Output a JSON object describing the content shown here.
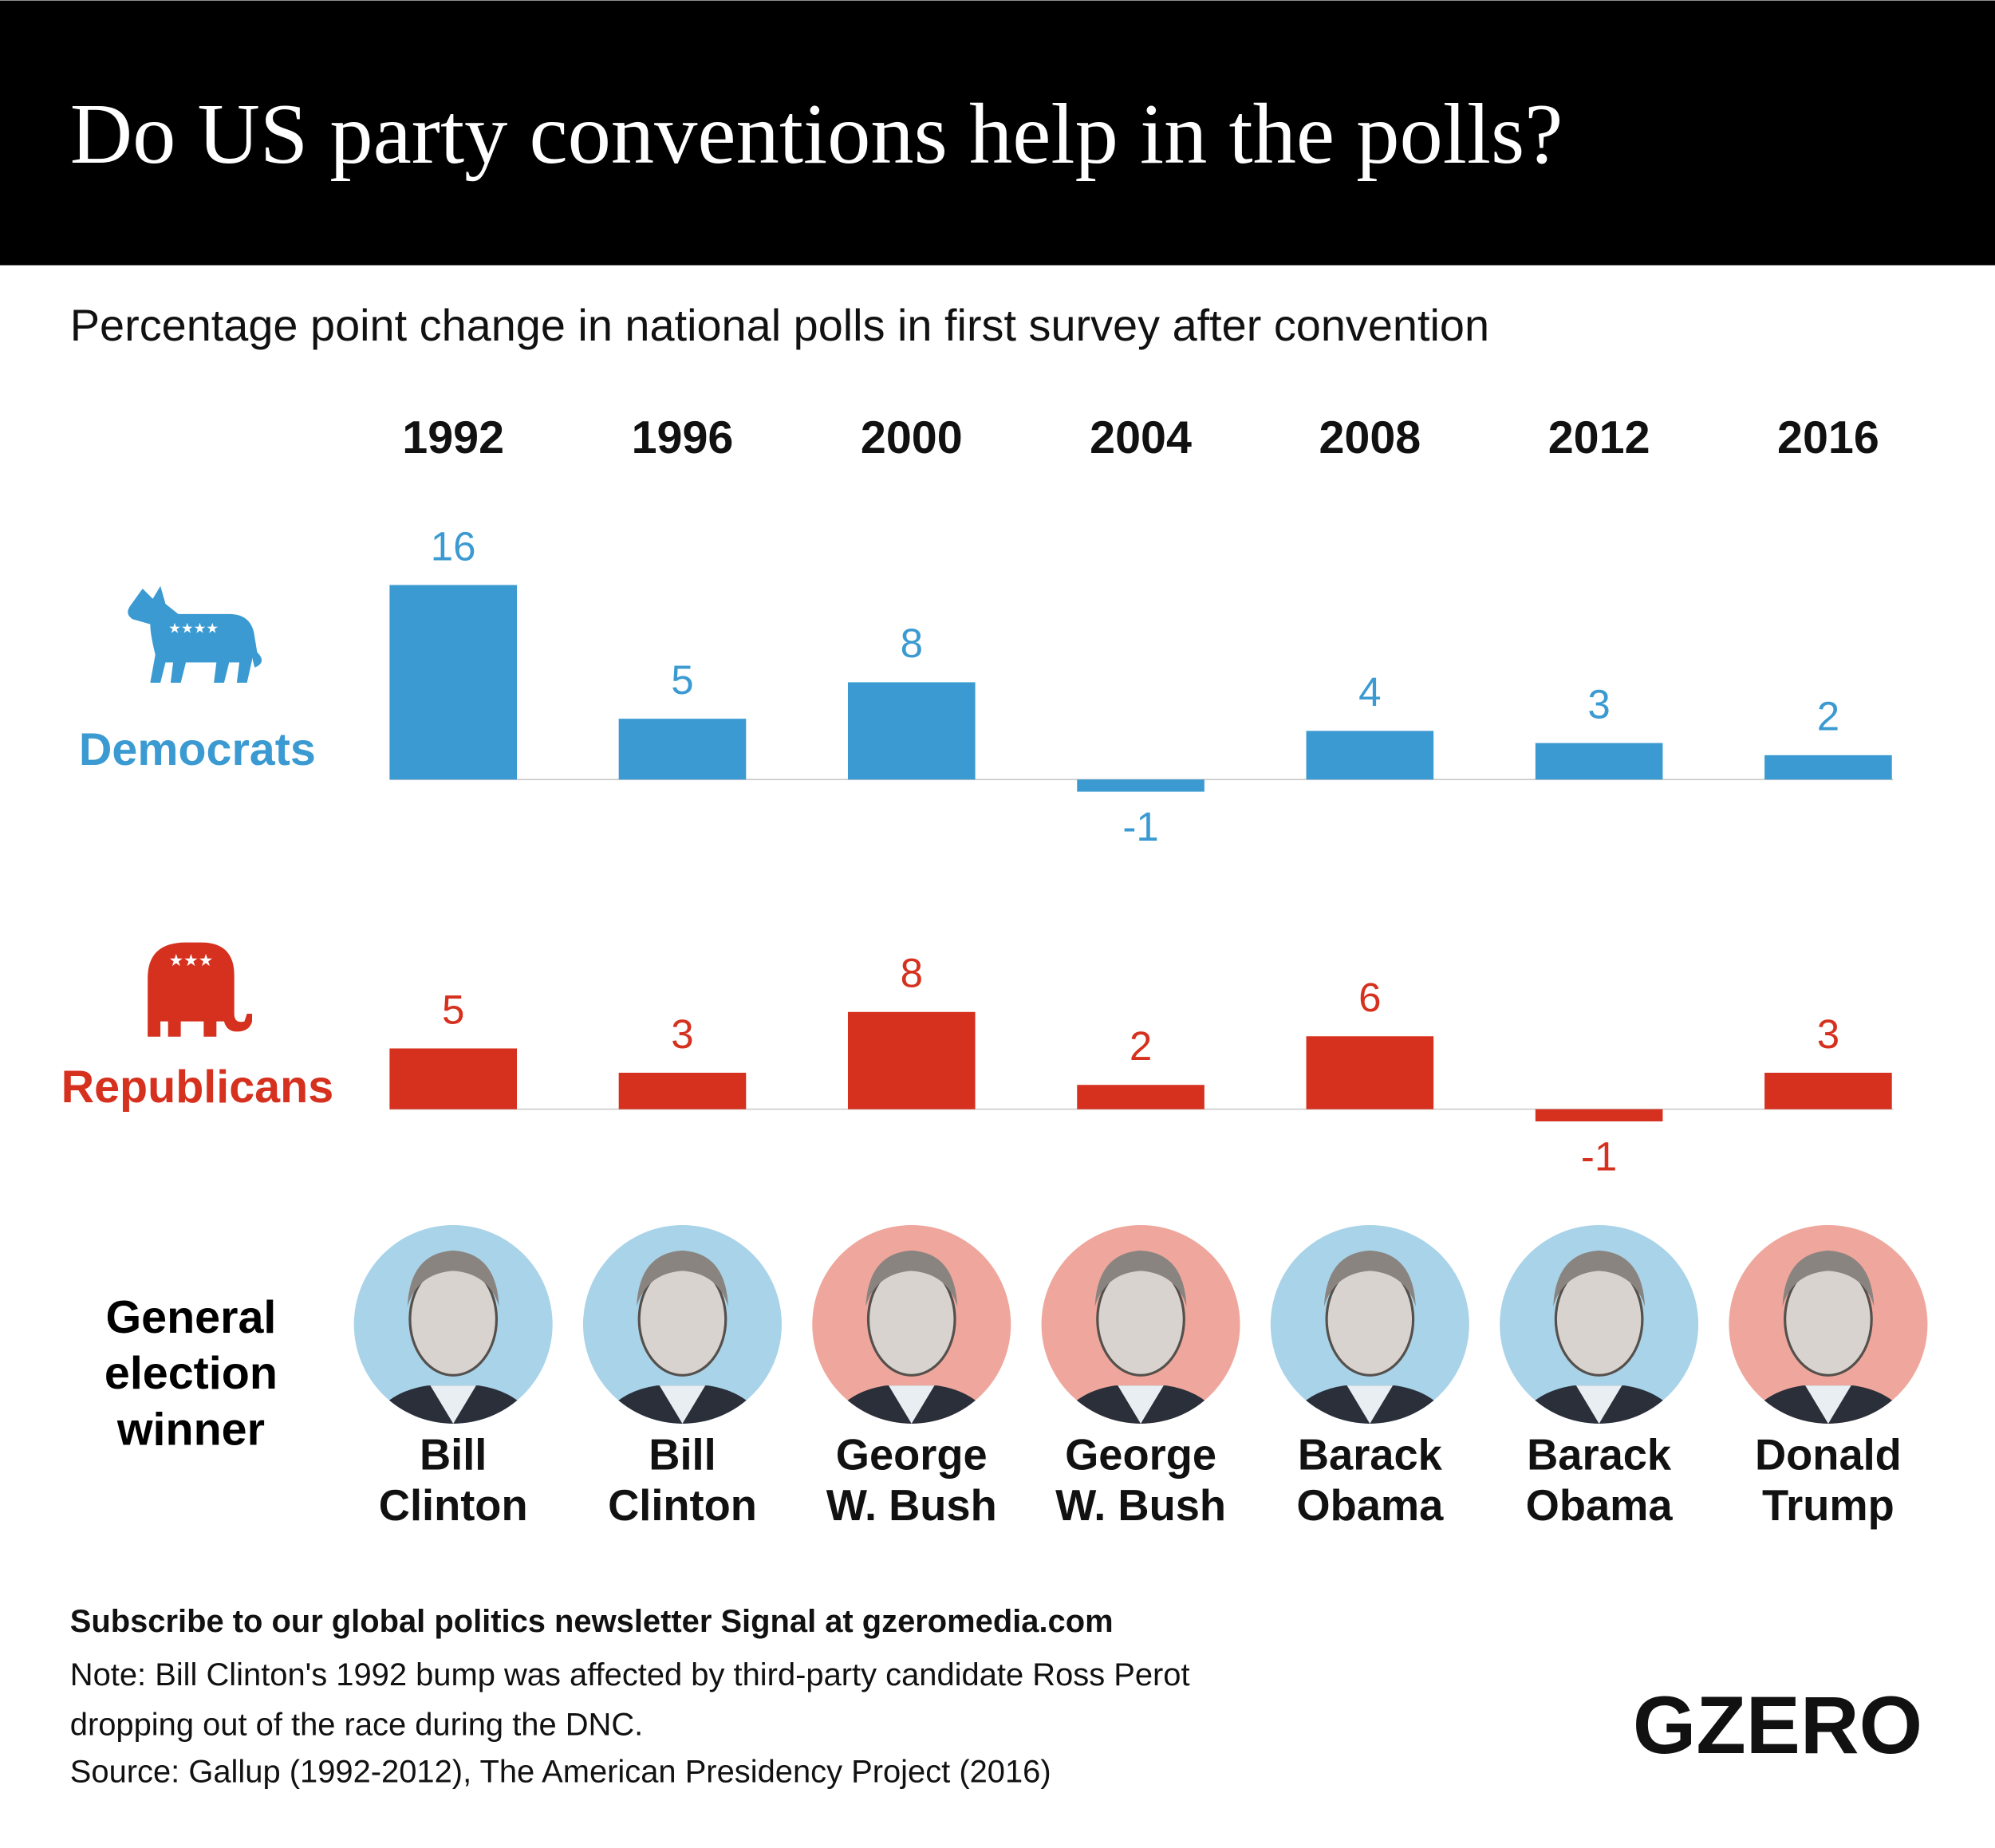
{
  "title": "Do US party conventions help in the polls?",
  "subtitle": "Percentage point change in national polls in first survey after convention",
  "chart_data": [
    {
      "type": "bar",
      "name": "Democrats",
      "color": "#3a9ad1",
      "categories": [
        "1992",
        "1996",
        "2000",
        "2004",
        "2008",
        "2012",
        "2016"
      ],
      "values": [
        16,
        5,
        8,
        -1,
        4,
        3,
        2
      ]
    },
    {
      "type": "bar",
      "name": "Republicans",
      "color": "#d6301e",
      "values": [
        5,
        3,
        8,
        2,
        6,
        -1,
        3
      ]
    }
  ],
  "winner_label": [
    "General",
    "election",
    "winner"
  ],
  "winners": [
    [
      "Bill",
      "Clinton"
    ],
    [
      "Bill",
      "Clinton"
    ],
    [
      "George",
      "W. Bush"
    ],
    [
      "George",
      "W. Bush"
    ],
    [
      "Barack",
      "Obama"
    ],
    [
      "Barack",
      "Obama"
    ],
    [
      "Donald",
      "Trump"
    ]
  ],
  "winner_colors": [
    "#a9d3e8",
    "#a9d3e8",
    "#efa79d",
    "#efa79d",
    "#a9d3e8",
    "#a9d3e8",
    "#efa79d"
  ],
  "subscribe": "Subscribe to our global politics newsletter Signal at gzeromedia.com",
  "note": [
    "Note: Bill Clinton's 1992 bump was affected by third-party candidate Ross Perot",
    "dropping out of the race during the DNC."
  ],
  "source": "Source: Gallup (1992-2012), The American Presidency Project (2016)",
  "logo": "GZERO"
}
